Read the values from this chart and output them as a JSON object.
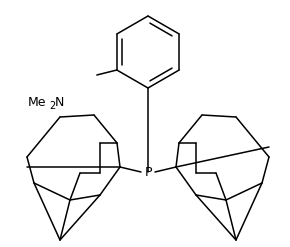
{
  "background": "#ffffff",
  "line_color": "#000000",
  "line_width": 1.1,
  "label_P": "P",
  "label_Me2N": "Me 2N",
  "font_size_P": 9,
  "font_size_label": 9,
  "figsize": [
    2.9,
    2.47
  ],
  "dpi": 100
}
